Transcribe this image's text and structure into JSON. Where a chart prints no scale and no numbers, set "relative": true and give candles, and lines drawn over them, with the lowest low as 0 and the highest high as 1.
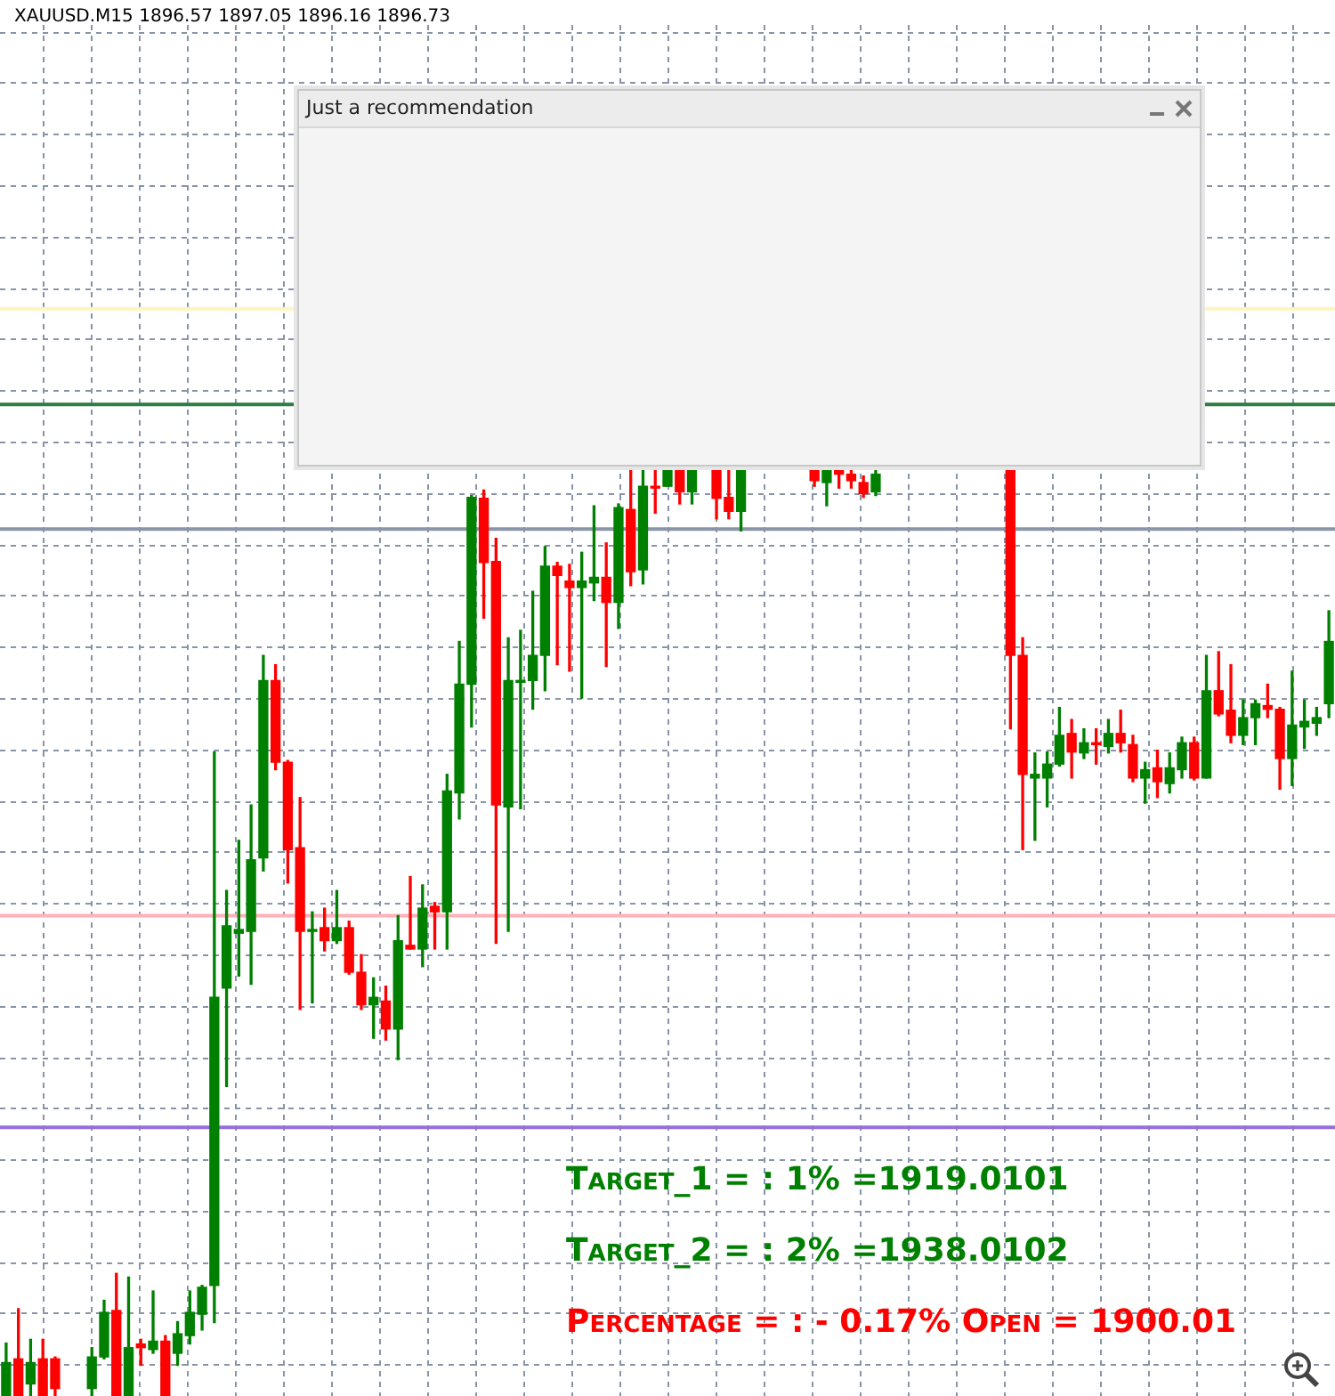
{
  "chart_data": {
    "type": "candlestick",
    "relative": true,
    "title": "XAUUSD.M15  1896.57 1897.05 1896.16 1896.73",
    "categories": [
      null,
      null,
      null,
      null,
      null,
      null,
      null,
      null,
      null,
      null,
      null,
      null,
      null,
      null,
      null,
      null,
      null,
      null,
      null,
      null,
      null,
      null,
      null,
      null,
      null,
      null,
      null,
      null,
      null,
      null,
      null,
      null,
      null,
      null,
      null,
      null,
      null,
      null,
      null,
      null,
      null,
      null,
      null,
      null,
      null,
      null,
      null,
      null,
      null,
      null,
      null,
      null,
      null,
      null,
      null,
      null,
      null,
      null,
      null,
      null,
      null,
      null,
      null,
      null,
      null,
      null,
      null,
      null,
      null,
      null,
      null,
      null,
      null,
      null,
      null,
      null,
      null,
      null,
      null,
      null,
      null,
      null,
      null,
      null,
      null,
      null,
      null,
      null,
      null,
      null,
      null,
      null,
      null,
      null,
      null,
      null,
      null,
      null,
      null,
      null,
      null,
      null,
      null,
      null,
      null,
      null,
      null,
      null,
      null
    ],
    "ohlc": [
      [
        0,
        0.057,
        0,
        0.036
      ],
      [
        0.04,
        0.094,
        0,
        0
      ],
      [
        0.013,
        0.061,
        0,
        0.036
      ],
      [
        0.04,
        0.061,
        0,
        0
      ],
      [
        0.04,
        0.042,
        0,
        0.008
      ],
      null,
      null,
      [
        0.008,
        0.052,
        0,
        0.042
      ],
      [
        0.042,
        0.103,
        0.04,
        0.09
      ],
      [
        0.092,
        0.132,
        0,
        0
      ],
      [
        0,
        0.128,
        0,
        0.052
      ],
      [
        0.056,
        0.061,
        0.033,
        0.052
      ],
      [
        0.05,
        0.113,
        0.046,
        0.059
      ],
      [
        0.059,
        0.065,
        0,
        0
      ],
      [
        0.046,
        0.08,
        0.033,
        0.067
      ],
      [
        0.065,
        0.113,
        0.056,
        0.09
      ],
      [
        0.088,
        0.119,
        0.071,
        0.117
      ],
      [
        0.119,
        0.693,
        0.079,
        0.429
      ],
      [
        0.439,
        0.544,
        0.333,
        0.506
      ],
      [
        0.498,
        0.598,
        0.452,
        0.502
      ],
      [
        0.5,
        0.636,
        0.443,
        0.577
      ],
      [
        0.579,
        0.797,
        0.565,
        0.77
      ],
      [
        0.77,
        0.787,
        0.674,
        0.682
      ],
      [
        0.682,
        0.684,
        0.552,
        0.588
      ],
      [
        0.59,
        0.644,
        0.416,
        0.5
      ],
      [
        0.5,
        0.521,
        0.423,
        0.502
      ],
      [
        0.504,
        0.525,
        0.479,
        0.49
      ],
      [
        0.49,
        0.544,
        0.487,
        0.504
      ],
      [
        0.504,
        0.511,
        0.454,
        0.456
      ],
      [
        0.456,
        0.475,
        0.416,
        0.421
      ],
      [
        0.421,
        0.45,
        0.385,
        0.429
      ],
      [
        0.425,
        0.441,
        0.383,
        0.395
      ],
      [
        0.395,
        0.517,
        0.362,
        0.49
      ],
      [
        0.485,
        0.559,
        0.481,
        0.481
      ],
      [
        0.481,
        0.55,
        0.462,
        0.525
      ],
      [
        0.527,
        0.531,
        0.481,
        0.521
      ],
      [
        0.521,
        0.669,
        0.481,
        0.651
      ],
      [
        0.649,
        0.812,
        0.621,
        0.766
      ],
      [
        0.766,
        0.969,
        0.72,
        0.967
      ],
      [
        0.966,
        0.975,
        0.837,
        0.897
      ],
      [
        0.898,
        0.923,
        0.487,
        0.636
      ],
      [
        0.634,
        0.816,
        0.5,
        0.77
      ],
      [
        0.768,
        0.824,
        0.632,
        0.77
      ],
      [
        0.77,
        0.866,
        0.739,
        0.797
      ],
      [
        0.797,
        0.914,
        0.759,
        0.893
      ],
      [
        0.893,
        0.897,
        0.787,
        0.883
      ],
      [
        0.877,
        0.895,
        0.78,
        0.87
      ],
      [
        0.87,
        0.908,
        0.751,
        0.877
      ],
      [
        0.875,
        0.958,
        0.856,
        0.881
      ],
      [
        0.881,
        0.918,
        0.785,
        0.854
      ],
      [
        0.854,
        0.96,
        0.826,
        0.956
      ],
      [
        0.954,
        1,
        0.872,
        0.887
      ],
      [
        0.889,
        1,
        0.874,
        0.979
      ],
      [
        0.979,
        1,
        0.95,
        0.977
      ],
      [
        0.979,
        1,
        0.979,
        1
      ],
      [
        1,
        1,
        0.96,
        0.973
      ],
      [
        0.973,
        1,
        0.96,
        1
      ],
      null,
      [
        1,
        1,
        0.944,
        0.966
      ],
      [
        0.967,
        1,
        0.944,
        0.952
      ],
      [
        0.952,
        1,
        0.931,
        1
      ],
      null,
      null,
      null,
      null,
      null,
      [
        1,
        1,
        0.979,
        0.985
      ],
      [
        0.983,
        1,
        0.958,
        1
      ],
      [
        1,
        1,
        0.977,
        0.992
      ],
      [
        0.992,
        1,
        0.977,
        0.985
      ],
      [
        0.983,
        0.99,
        0.967,
        0.971
      ],
      [
        0.973,
        1,
        0.969,
        0.992
      ],
      null,
      null,
      null,
      null,
      null,
      null,
      null,
      null,
      null,
      null,
      [
        1,
        1,
        0.718,
        0.797
      ],
      [
        0.797,
        0.816,
        0.588,
        0.669
      ],
      [
        0.665,
        0.692,
        0.598,
        0.669
      ],
      [
        0.665,
        0.693,
        0.634,
        0.68
      ],
      [
        0.68,
        0.741,
        0.678,
        0.711
      ],
      [
        0.713,
        0.728,
        0.665,
        0.693
      ],
      [
        0.692,
        0.718,
        0.686,
        0.703
      ],
      [
        0.703,
        0.718,
        0.68,
        0.701
      ],
      [
        0.699,
        0.728,
        0.692,
        0.713
      ],
      [
        0.713,
        0.738,
        0.693,
        0.703
      ],
      [
        0.701,
        0.711,
        0.661,
        0.665
      ],
      [
        0.665,
        0.682,
        0.638,
        0.674
      ],
      [
        0.676,
        0.695,
        0.644,
        0.661
      ],
      [
        0.659,
        0.692,
        0.649,
        0.676
      ],
      [
        0.674,
        0.709,
        0.665,
        0.703
      ],
      [
        0.703,
        0.709,
        0.663,
        0.665
      ],
      [
        0.665,
        0.797,
        0.665,
        0.759
      ],
      [
        0.759,
        0.801,
        0.732,
        0.734
      ],
      [
        0.738,
        0.787,
        0.703,
        0.711
      ],
      [
        0.711,
        0.749,
        0.701,
        0.73
      ],
      [
        0.73,
        0.749,
        0.701,
        0.745
      ],
      [
        0.743,
        0.766,
        0.73,
        0.739
      ],
      [
        0.739,
        0.741,
        0.653,
        0.686
      ],
      [
        0.686,
        0.78,
        0.657,
        0.722
      ],
      [
        0.72,
        0.749,
        0.697,
        0.726
      ],
      [
        0.724,
        0.741,
        0.711,
        0.73
      ],
      [
        0.745,
        0.845,
        0.73,
        0.812
      ]
    ],
    "colors": [
      "#008000",
      "#ff0000",
      "#008000",
      "#ff0000",
      "#ff0000",
      null,
      null,
      "#008000",
      "#008000",
      "#ff0000",
      "#008000",
      "#ff0000",
      "#008000",
      "#ff0000",
      "#008000",
      "#008000",
      "#008000",
      "#008000",
      "#008000",
      "#008000",
      "#008000",
      "#008000",
      "#ff0000",
      "#ff0000",
      "#ff0000",
      "#008000",
      "#ff0000",
      "#008000",
      "#ff0000",
      "#ff0000",
      "#008000",
      "#ff0000",
      "#008000",
      "#ff0000",
      "#008000",
      "#ff0000",
      "#008000",
      "#008000",
      "#008000",
      "#ff0000",
      "#ff0000",
      "#008000",
      "#008000",
      "#008000",
      "#008000",
      "#ff0000",
      "#ff0000",
      "#008000",
      "#008000",
      "#ff0000",
      "#008000",
      "#ff0000",
      "#008000",
      "#ff0000",
      "#008000",
      "#ff0000",
      "#008000",
      null,
      "#ff0000",
      "#ff0000",
      "#008000",
      null,
      null,
      null,
      null,
      null,
      "#ff0000",
      "#008000",
      "#ff0000",
      "#ff0000",
      "#ff0000",
      "#008000",
      null,
      null,
      null,
      null,
      null,
      null,
      null,
      null,
      null,
      null,
      "#ff0000",
      "#ff0000",
      "#008000",
      "#008000",
      "#008000",
      "#ff0000",
      "#008000",
      "#ff0000",
      "#008000",
      "#ff0000",
      "#ff0000",
      "#008000",
      "#ff0000",
      "#008000",
      "#008000",
      "#ff0000",
      "#008000",
      "#ff0000",
      "#ff0000",
      "#008000",
      "#008000",
      "#ff0000",
      "#ff0000",
      "#008000",
      "#008000",
      "#008000",
      "#008000"
    ],
    "ref_lines": [
      {
        "axis": "y",
        "value": 1.17,
        "color": "#fff4c0",
        "line_style": "solid"
      },
      {
        "axis": "y",
        "value": 1.067,
        "color": "#2e7d46",
        "line_style": "solid"
      },
      {
        "axis": "y",
        "value": 0.933,
        "color": "#8a96a8",
        "line_style": "solid"
      },
      {
        "axis": "y",
        "value": 0.517,
        "color": "#ffb0b8",
        "line_style": "solid"
      },
      {
        "axis": "y",
        "value": 0.289,
        "color": "#9370db",
        "line_style": "solid"
      }
    ],
    "annotations": [
      "Just a recommendation",
      "Target_1 = : 1% =1919.0101",
      "Target_2 = : 2% =1938.0102",
      "Percentage = : - 0.17% Open = 1900.01"
    ],
    "grid": true,
    "legend": false
  }
}
